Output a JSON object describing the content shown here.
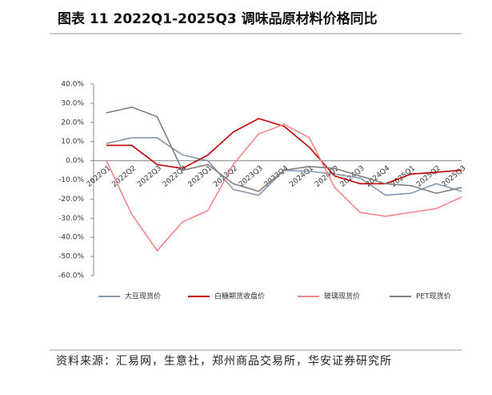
{
  "chart_data": {
    "type": "line",
    "title": "图表 11 2022Q1-2025Q3 调味品原材料价格同比",
    "source": "资料来源：汇易网，生意社，郑州商品交易所，华安证券研究所",
    "categories": [
      "2022Q1",
      "2022Q2",
      "2022Q3",
      "2022Q4",
      "2023Q1",
      "2023Q2",
      "2023Q3",
      "2023Q4",
      "2024Q1",
      "2024Q2",
      "2024Q3",
      "2024Q4",
      "2025Q1",
      "2025Q2",
      "2025Q3"
    ],
    "series": [
      {
        "name": "大豆现货价",
        "color": "#8497b0",
        "values": [
          9,
          12,
          12,
          3,
          0,
          -15,
          -18,
          -5,
          -5.5,
          -7,
          -9,
          -18,
          -17,
          -12,
          -16
        ]
      },
      {
        "name": "白糖期货收盘价",
        "color": "#c00000",
        "values": [
          8,
          8,
          -2,
          -4,
          3,
          15,
          22,
          18,
          7,
          -8,
          -12,
          -12,
          -7,
          -6,
          -5
        ]
      },
      {
        "name": "玻璃现货价",
        "color": "#f4868a",
        "values": [
          0,
          -28,
          -47,
          -32,
          -26,
          -2,
          14,
          19,
          12,
          -14,
          -27,
          -29,
          -27,
          -25,
          -19
        ]
      },
      {
        "name": "PET现货价",
        "color": "#7f7f7f",
        "values": [
          25,
          28,
          23,
          -5,
          -2,
          -12,
          -16,
          -5,
          -3,
          -4,
          -8,
          -12,
          -13,
          -17,
          -14
        ]
      }
    ],
    "ylim": [
      -60,
      40
    ],
    "yticks": [
      {
        "value": -60,
        "label": "-60.0%"
      },
      {
        "value": -50,
        "label": "-50.0%"
      },
      {
        "value": -40,
        "label": "-40.0%"
      },
      {
        "value": -30,
        "label": "-30.0%"
      },
      {
        "value": -20,
        "label": "-20.0%"
      },
      {
        "value": -10,
        "label": "-10.0%"
      },
      {
        "value": 0,
        "label": "0.0%"
      },
      {
        "value": 10,
        "label": "10.0%"
      },
      {
        "value": 20,
        "label": "20.0%"
      },
      {
        "value": 30,
        "label": "30.0%"
      },
      {
        "value": 40,
        "label": "40.0%"
      }
    ]
  }
}
